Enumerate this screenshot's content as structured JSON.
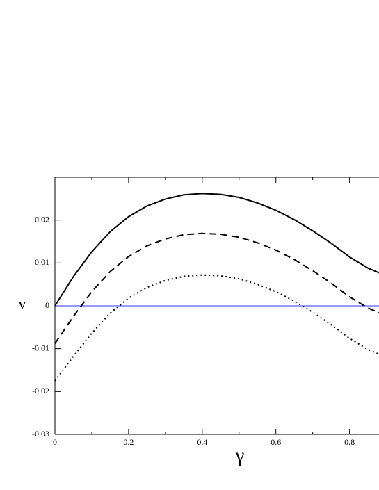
{
  "chart_data": {
    "type": "line",
    "x_label": "γ",
    "y_label": "v",
    "x": [
      0,
      0.05,
      0.1,
      0.15,
      0.2,
      0.25,
      0.3,
      0.35,
      0.4,
      0.45,
      0.5,
      0.55,
      0.6,
      0.65,
      0.7,
      0.75,
      0.8,
      0.85,
      0.88
    ],
    "series": [
      {
        "color": "#000000",
        "style": "solid",
        "values": [
          0,
          0.0068,
          0.0126,
          0.0173,
          0.0208,
          0.0233,
          0.0249,
          0.0259,
          0.0262,
          0.026,
          0.0253,
          0.024,
          0.0223,
          0.0201,
          0.0175,
          0.0146,
          0.0114,
          0.0088,
          0.0077
        ]
      },
      {
        "color": "#000000",
        "style": "dashed",
        "values": [
          -0.0088,
          -0.0025,
          0.0033,
          0.008,
          0.0115,
          0.014,
          0.0156,
          0.0166,
          0.0169,
          0.0167,
          0.016,
          0.0147,
          0.013,
          0.0108,
          0.0082,
          0.0053,
          0.0021,
          -0.0005,
          -0.0016
        ]
      },
      {
        "color": "#000000",
        "style": "dotted",
        "values": [
          -0.0175,
          -0.0118,
          -0.0064,
          -0.0017,
          0.0018,
          0.0043,
          0.0059,
          0.0069,
          0.0072,
          0.007,
          0.0063,
          0.005,
          0.0033,
          0.0011,
          -0.0015,
          -0.0044,
          -0.0076,
          -0.0102,
          -0.0113
        ]
      }
    ],
    "reference_line": {
      "value": 0,
      "color": "#3333ff"
    },
    "xlim": [
      0,
      0.88
    ],
    "ylim": [
      -0.03,
      0.03
    ],
    "xticks": [
      0,
      0.2,
      0.4,
      0.6,
      0.8
    ],
    "x_minor_ticks": [
      0.1,
      0.3,
      0.5,
      0.7
    ],
    "yticks": [
      -0.03,
      -0.02,
      -0.01,
      0,
      0.01,
      0.02
    ]
  }
}
